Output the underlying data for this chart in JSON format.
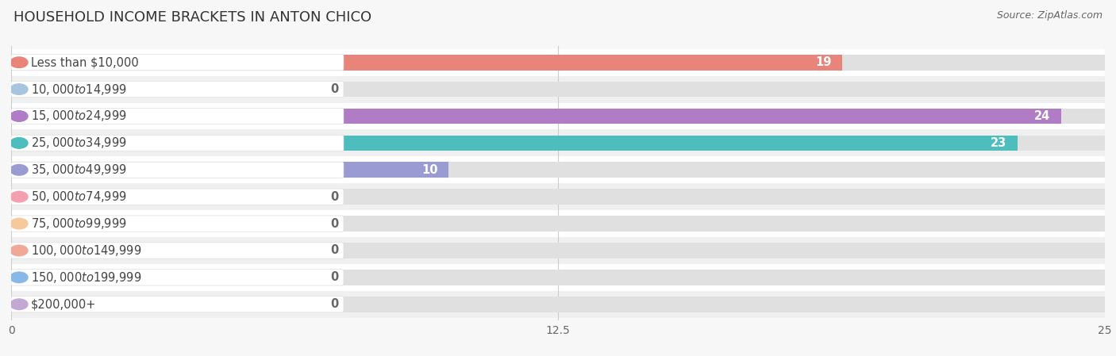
{
  "title": "HOUSEHOLD INCOME BRACKETS IN ANTON CHICO",
  "source": "Source: ZipAtlas.com",
  "categories": [
    "Less than $10,000",
    "$10,000 to $14,999",
    "$15,000 to $24,999",
    "$25,000 to $34,999",
    "$35,000 to $49,999",
    "$50,000 to $74,999",
    "$75,000 to $99,999",
    "$100,000 to $149,999",
    "$150,000 to $199,999",
    "$200,000+"
  ],
  "values": [
    19,
    0,
    24,
    23,
    10,
    0,
    0,
    0,
    0,
    0
  ],
  "bar_colors": [
    "#E8847A",
    "#A8C4E0",
    "#B07CC6",
    "#4DBDBD",
    "#9B9BD4",
    "#F4A0B0",
    "#F5C99A",
    "#F0A898",
    "#88B8E8",
    "#C4A8D4"
  ],
  "xlim": [
    0,
    25
  ],
  "xticks": [
    0,
    12.5,
    25
  ],
  "bg_color": "#f7f7f7",
  "row_colors": [
    "#ffffff",
    "#f0f0f0"
  ],
  "bar_bg_color": "#e0e0e0",
  "title_fontsize": 13,
  "label_fontsize": 10.5,
  "tick_fontsize": 10,
  "source_fontsize": 9,
  "bar_height": 0.58,
  "value_color_inside": "#ffffff",
  "value_color_outside": "#666666",
  "value_threshold": 1,
  "label_text_color": "#444444"
}
